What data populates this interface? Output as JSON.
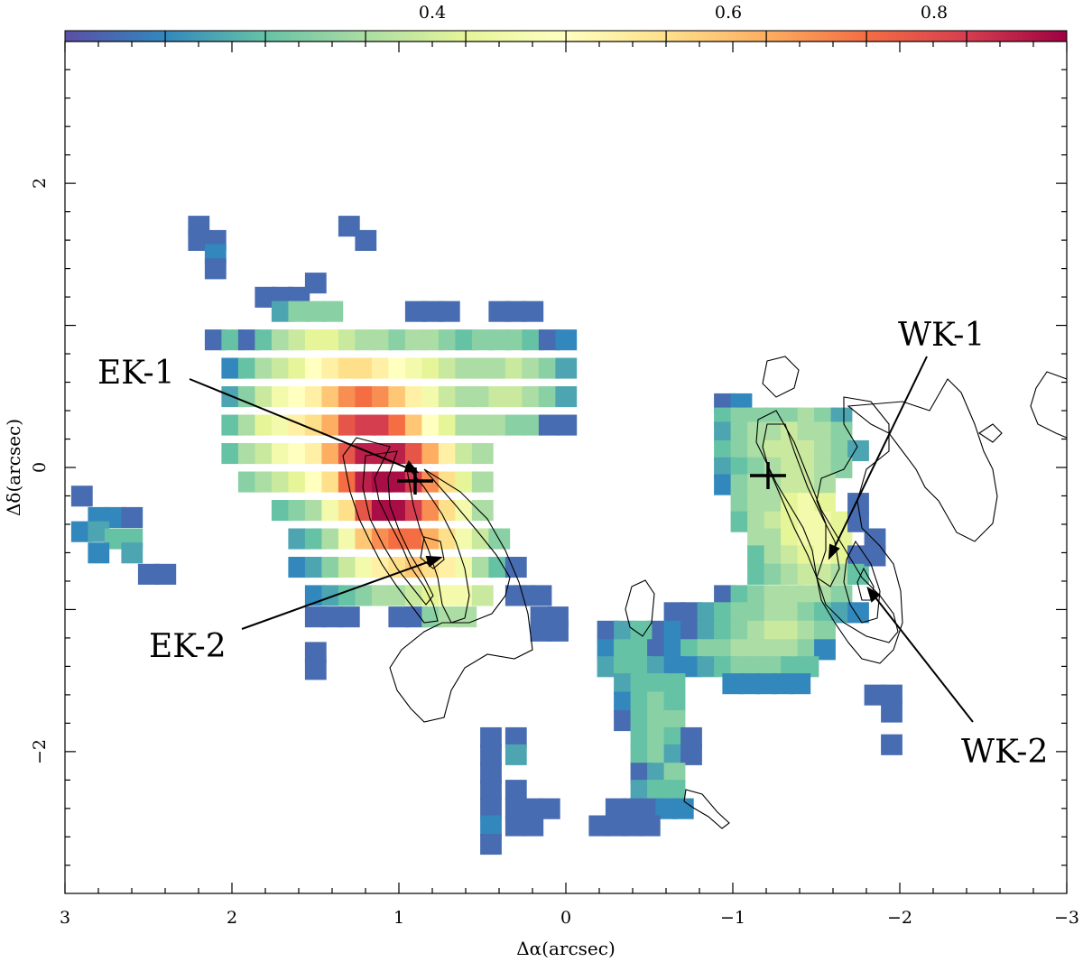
{
  "chart_data": {
    "type": "heatmap",
    "title": "",
    "xlabel": "Δα(arcsec)",
    "ylabel": "Δδ(arcsec)",
    "xlim": [
      3,
      -3
    ],
    "ylim": [
      -3.0,
      3.0
    ],
    "xticks": [
      "3",
      "2",
      "1",
      "0",
      "−1",
      "−2",
      "−3"
    ],
    "yticks": [
      "2",
      "0",
      "−2"
    ],
    "colorbar": {
      "ticks": [
        "0.4",
        "0.6",
        "0.8"
      ],
      "stops": [
        "#5b4fa5",
        "#3288bd",
        "#66c2a5",
        "#abdda4",
        "#e6f598",
        "#ffffbf",
        "#fee08b",
        "#fdae61",
        "#f46d43",
        "#d53e4f",
        "#9e0142"
      ]
    },
    "labels": {
      "ek1": "EK-1",
      "ek2": "EK-2",
      "wk1": "WK-1",
      "wk2": "WK-2"
    },
    "cell_size": 0.125,
    "x_offset": 0.066,
    "y_offset": 0.07,
    "cells": [
      {
        "row": -1,
        "cols": [
          [
            17,
            7
          ],
          [
            17,
            7
          ]
        ]
      }
    ],
    "map": [
      [
        2.2,
        1.7,
        0.05
      ],
      [
        2.2,
        1.6,
        0.05
      ],
      [
        2.1,
        1.6,
        0.05
      ],
      [
        2.1,
        1.5,
        0.1
      ],
      [
        2.1,
        1.4,
        0.05
      ],
      [
        1.3,
        1.7,
        0.05
      ],
      [
        1.2,
        1.6,
        0.05
      ],
      [
        1.8,
        1.2,
        0.05
      ],
      [
        1.7,
        1.2,
        0.05
      ],
      [
        1.6,
        1.2,
        0.05
      ],
      [
        1.5,
        1.3,
        0.05
      ],
      [
        1.7,
        1.1,
        0.15
      ],
      [
        1.6,
        1.1,
        0.25
      ],
      [
        1.5,
        1.1,
        0.25
      ],
      [
        1.4,
        1.1,
        0.25
      ],
      [
        0.9,
        1.1,
        0.05
      ],
      [
        0.8,
        1.1,
        0.05
      ],
      [
        0.7,
        1.1,
        0.05
      ],
      [
        0.4,
        1.1,
        0.05
      ],
      [
        0.3,
        1.1,
        0.05
      ],
      [
        0.2,
        1.1,
        0.05
      ],
      [
        2.1,
        0.9,
        0.05
      ],
      [
        2.0,
        0.9,
        0.2
      ],
      [
        1.9,
        0.9,
        0.05
      ],
      [
        1.8,
        0.9,
        0.2
      ],
      [
        1.7,
        0.9,
        0.3
      ],
      [
        1.6,
        0.9,
        0.35
      ],
      [
        1.5,
        0.9,
        0.4
      ],
      [
        1.4,
        0.9,
        0.4
      ],
      [
        1.3,
        0.9,
        0.35
      ],
      [
        1.2,
        0.9,
        0.3
      ],
      [
        1.1,
        0.9,
        0.3
      ],
      [
        1.0,
        0.9,
        0.25
      ],
      [
        0.9,
        0.9,
        0.3
      ],
      [
        0.8,
        0.9,
        0.3
      ],
      [
        0.7,
        0.9,
        0.25
      ],
      [
        0.6,
        0.9,
        0.2
      ],
      [
        0.5,
        0.9,
        0.25
      ],
      [
        0.4,
        0.9,
        0.25
      ],
      [
        0.3,
        0.9,
        0.25
      ],
      [
        0.2,
        0.9,
        0.2
      ],
      [
        0.1,
        0.9,
        0.05
      ],
      [
        0.0,
        0.9,
        0.1
      ],
      [
        2.0,
        0.7,
        0.1
      ],
      [
        1.9,
        0.7,
        0.2
      ],
      [
        1.8,
        0.7,
        0.3
      ],
      [
        1.7,
        0.7,
        0.35
      ],
      [
        1.6,
        0.7,
        0.4
      ],
      [
        1.5,
        0.7,
        0.5
      ],
      [
        1.4,
        0.7,
        0.55
      ],
      [
        1.3,
        0.7,
        0.6
      ],
      [
        1.2,
        0.7,
        0.6
      ],
      [
        1.1,
        0.7,
        0.55
      ],
      [
        1.0,
        0.7,
        0.5
      ],
      [
        0.9,
        0.7,
        0.45
      ],
      [
        0.8,
        0.7,
        0.4
      ],
      [
        0.7,
        0.7,
        0.35
      ],
      [
        0.6,
        0.7,
        0.3
      ],
      [
        0.5,
        0.7,
        0.3
      ],
      [
        0.4,
        0.7,
        0.3
      ],
      [
        0.3,
        0.7,
        0.35
      ],
      [
        0.2,
        0.7,
        0.3
      ],
      [
        0.1,
        0.7,
        0.25
      ],
      [
        0.0,
        0.7,
        0.15
      ],
      [
        2.0,
        0.5,
        0.15
      ],
      [
        1.9,
        0.5,
        0.25
      ],
      [
        1.8,
        0.5,
        0.35
      ],
      [
        1.7,
        0.5,
        0.45
      ],
      [
        1.6,
        0.5,
        0.5
      ],
      [
        1.5,
        0.5,
        0.55
      ],
      [
        1.4,
        0.5,
        0.65
      ],
      [
        1.3,
        0.5,
        0.75
      ],
      [
        1.2,
        0.5,
        0.8
      ],
      [
        1.1,
        0.5,
        0.75
      ],
      [
        1.0,
        0.5,
        0.65
      ],
      [
        0.9,
        0.5,
        0.55
      ],
      [
        0.8,
        0.5,
        0.45
      ],
      [
        0.7,
        0.5,
        0.35
      ],
      [
        0.6,
        0.5,
        0.3
      ],
      [
        0.5,
        0.5,
        0.3
      ],
      [
        0.4,
        0.5,
        0.35
      ],
      [
        0.3,
        0.5,
        0.35
      ],
      [
        0.2,
        0.5,
        0.3
      ],
      [
        0.1,
        0.5,
        0.25
      ],
      [
        0.0,
        0.5,
        0.15
      ],
      [
        2.0,
        0.3,
        0.2
      ],
      [
        1.9,
        0.3,
        0.3
      ],
      [
        1.8,
        0.3,
        0.4
      ],
      [
        1.7,
        0.3,
        0.45
      ],
      [
        1.6,
        0.3,
        0.55
      ],
      [
        1.5,
        0.3,
        0.6
      ],
      [
        1.4,
        0.3,
        0.7
      ],
      [
        1.3,
        0.3,
        0.85
      ],
      [
        1.2,
        0.3,
        0.9
      ],
      [
        1.1,
        0.3,
        0.9
      ],
      [
        1.0,
        0.3,
        0.8
      ],
      [
        0.9,
        0.3,
        0.65
      ],
      [
        0.8,
        0.3,
        0.5
      ],
      [
        0.7,
        0.3,
        0.4
      ],
      [
        0.6,
        0.3,
        0.3
      ],
      [
        0.5,
        0.3,
        0.3
      ],
      [
        0.4,
        0.3,
        0.3
      ],
      [
        0.3,
        0.3,
        0.25
      ],
      [
        0.2,
        0.3,
        0.25
      ],
      [
        0.1,
        0.3,
        0.05
      ],
      [
        0.0,
        0.3,
        0.05
      ]
    ]
  }
}
